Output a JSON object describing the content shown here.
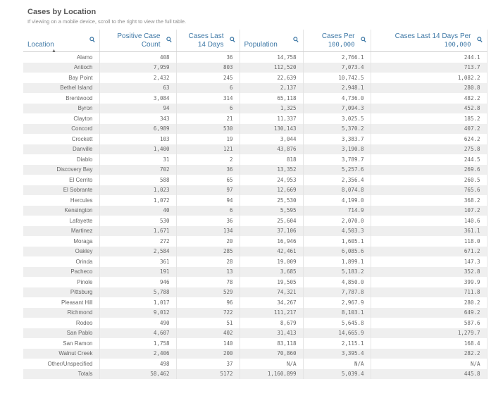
{
  "title": "Cases by Location",
  "subtitle": "If viewing on a mobile device, scroll to the right to view the full table.",
  "columns": [
    {
      "label": "Location",
      "cls": "loc"
    },
    {
      "label": "Positive Case Count",
      "cls": ""
    },
    {
      "label": "Cases Last 14 Days",
      "cls": ""
    },
    {
      "label": "Population",
      "cls": "pop"
    },
    {
      "label": "Cases Per 100,000",
      "cls": "num2"
    },
    {
      "label": "Cases Last 14 Days Per 100,000",
      "cls": "num2"
    }
  ],
  "sort_indicator": "▲",
  "search_icon": "🔍",
  "rows": [
    [
      "Alamo",
      "408",
      "36",
      "14,758",
      "2,766.1",
      "244.1"
    ],
    [
      "Antioch",
      "7,959",
      "803",
      "112,520",
      "7,073.4",
      "713.7"
    ],
    [
      "Bay Point",
      "2,432",
      "245",
      "22,639",
      "10,742.5",
      "1,082.2"
    ],
    [
      "Bethel Island",
      "63",
      "6",
      "2,137",
      "2,948.1",
      "280.8"
    ],
    [
      "Brentwood",
      "3,084",
      "314",
      "65,118",
      "4,736.0",
      "482.2"
    ],
    [
      "Byron",
      "94",
      "6",
      "1,325",
      "7,094.3",
      "452.8"
    ],
    [
      "Clayton",
      "343",
      "21",
      "11,337",
      "3,025.5",
      "185.2"
    ],
    [
      "Concord",
      "6,989",
      "530",
      "130,143",
      "5,370.2",
      "407.2"
    ],
    [
      "Crockett",
      "103",
      "19",
      "3,044",
      "3,383.7",
      "624.2"
    ],
    [
      "Danville",
      "1,400",
      "121",
      "43,876",
      "3,190.8",
      "275.8"
    ],
    [
      "Diablo",
      "31",
      "2",
      "818",
      "3,789.7",
      "244.5"
    ],
    [
      "Discovery Bay",
      "702",
      "36",
      "13,352",
      "5,257.6",
      "269.6"
    ],
    [
      "El Cerrito",
      "588",
      "65",
      "24,953",
      "2,356.4",
      "260.5"
    ],
    [
      "El Sobrante",
      "1,023",
      "97",
      "12,669",
      "8,074.8",
      "765.6"
    ],
    [
      "Hercules",
      "1,072",
      "94",
      "25,530",
      "4,199.0",
      "368.2"
    ],
    [
      "Kensington",
      "40",
      "6",
      "5,595",
      "714.9",
      "107.2"
    ],
    [
      "Lafayette",
      "530",
      "36",
      "25,604",
      "2,070.0",
      "140.6"
    ],
    [
      "Martinez",
      "1,671",
      "134",
      "37,106",
      "4,503.3",
      "361.1"
    ],
    [
      "Moraga",
      "272",
      "20",
      "16,946",
      "1,605.1",
      "118.0"
    ],
    [
      "Oakley",
      "2,584",
      "285",
      "42,461",
      "6,085.6",
      "671.2"
    ],
    [
      "Orinda",
      "361",
      "28",
      "19,009",
      "1,899.1",
      "147.3"
    ],
    [
      "Pacheco",
      "191",
      "13",
      "3,685",
      "5,183.2",
      "352.8"
    ],
    [
      "Pinole",
      "946",
      "78",
      "19,505",
      "4,850.0",
      "399.9"
    ],
    [
      "Pittsburg",
      "5,788",
      "529",
      "74,321",
      "7,787.8",
      "711.8"
    ],
    [
      "Pleasant Hill",
      "1,017",
      "96",
      "34,267",
      "2,967.9",
      "280.2"
    ],
    [
      "Richmond",
      "9,012",
      "722",
      "111,217",
      "8,103.1",
      "649.2"
    ],
    [
      "Rodeo",
      "490",
      "51",
      "8,679",
      "5,645.8",
      "587.6"
    ],
    [
      "San Pablo",
      "4,607",
      "402",
      "31,413",
      "14,665.9",
      "1,279.7"
    ],
    [
      "San Ramon",
      "1,758",
      "140",
      "83,118",
      "2,115.1",
      "168.4"
    ],
    [
      "Walnut Creek",
      "2,406",
      "200",
      "70,860",
      "3,395.4",
      "282.2"
    ],
    [
      "Other/Unspecified",
      "498",
      "37",
      "N/A",
      "N/A",
      "N/A"
    ],
    [
      "Totals",
      "58,462",
      "5172",
      "1,160,899",
      "5,039.4",
      "445.8"
    ]
  ]
}
